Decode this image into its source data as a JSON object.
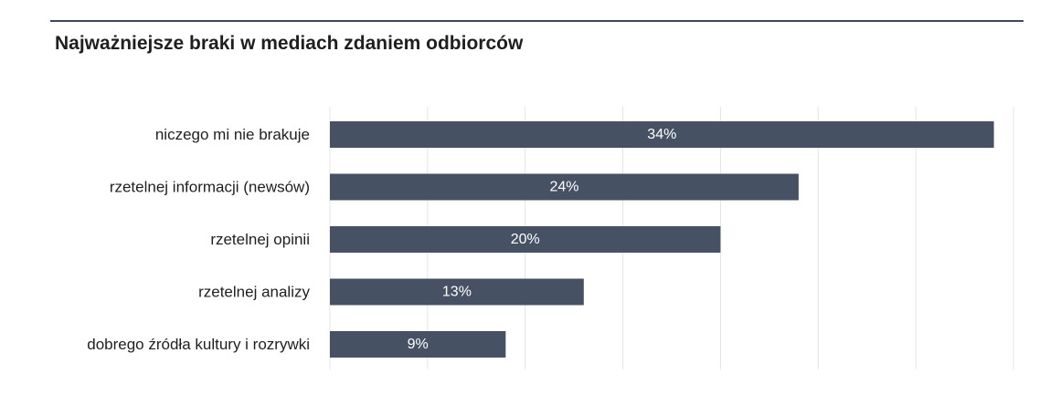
{
  "chart_data": {
    "type": "bar",
    "orientation": "horizontal",
    "title": "Najważniejsze braki w mediach zdaniem odbiorców",
    "categories": [
      "niczego mi nie brakuje",
      "rzetelnej informacji (newsów)",
      "rzetelnej opinii",
      "rzetelnej analizy",
      "dobrego źródła kultury i rozrywki"
    ],
    "values": [
      34,
      24,
      20,
      13,
      9
    ],
    "value_labels": [
      "34%",
      "24%",
      "20%",
      "13%",
      "9%"
    ],
    "unit": "%",
    "xlim": [
      0,
      35
    ],
    "grid": true,
    "legend": "none",
    "bar_color": "#465264",
    "grid_color": "#e4e4e4",
    "rule_color": "#3e4a5c"
  }
}
